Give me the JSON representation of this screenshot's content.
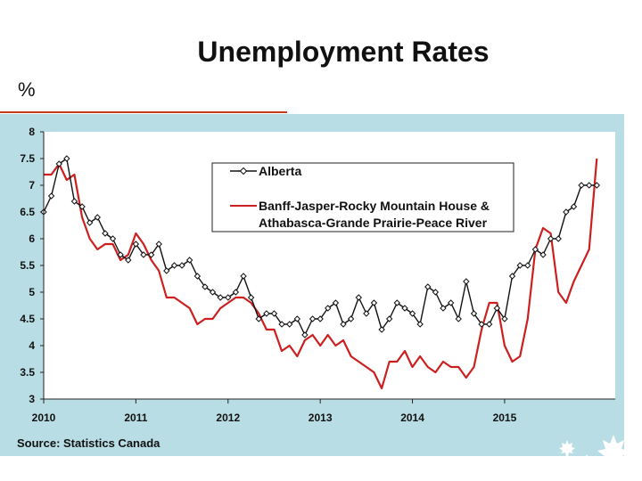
{
  "slide": {
    "title": "Unemployment Rates",
    "unit": "%",
    "source": "Source: Statistics Canada",
    "colors": {
      "panel": "#b9dde4",
      "accent": "#c8391f",
      "alberta": "#111111",
      "region": "#cc1f1f"
    }
  },
  "chart_data": {
    "type": "line",
    "title": "Unemployment Rates",
    "ylabel": "%",
    "xlim": [
      2010,
      2016.2
    ],
    "ylim": [
      3,
      8
    ],
    "yticks": [
      3,
      3.5,
      4,
      4.5,
      5,
      5.5,
      6,
      6.5,
      7,
      7.5,
      8
    ],
    "xticks": [
      2010,
      2011,
      2012,
      2013,
      2014,
      2015
    ],
    "grid": false,
    "legend": "top-center",
    "series": [
      {
        "name": "Alberta",
        "marker": "diamond",
        "color": "#111111",
        "x": [
          2010.0,
          2010.083,
          2010.167,
          2010.25,
          2010.333,
          2010.417,
          2010.5,
          2010.583,
          2010.667,
          2010.75,
          2010.833,
          2010.917,
          2011.0,
          2011.083,
          2011.167,
          2011.25,
          2011.333,
          2011.417,
          2011.5,
          2011.583,
          2011.667,
          2011.75,
          2011.833,
          2011.917,
          2012.0,
          2012.083,
          2012.167,
          2012.25,
          2012.333,
          2012.417,
          2012.5,
          2012.583,
          2012.667,
          2012.75,
          2012.833,
          2012.917,
          2013.0,
          2013.083,
          2013.167,
          2013.25,
          2013.333,
          2013.417,
          2013.5,
          2013.583,
          2013.667,
          2013.75,
          2013.833,
          2013.917,
          2014.0,
          2014.083,
          2014.167,
          2014.25,
          2014.333,
          2014.417,
          2014.5,
          2014.583,
          2014.667,
          2014.75,
          2014.833,
          2014.917,
          2015.0,
          2015.083,
          2015.167,
          2015.25,
          2015.333,
          2015.417,
          2015.5,
          2015.583,
          2015.667,
          2015.75,
          2015.833,
          2015.917,
          2016.0
        ],
        "y": [
          6.5,
          6.8,
          7.4,
          7.5,
          6.7,
          6.6,
          6.3,
          6.4,
          6.1,
          6.0,
          5.7,
          5.6,
          5.9,
          5.7,
          5.7,
          5.9,
          5.4,
          5.5,
          5.5,
          5.6,
          5.3,
          5.1,
          5.0,
          4.9,
          4.9,
          5.0,
          5.3,
          4.9,
          4.5,
          4.6,
          4.6,
          4.4,
          4.4,
          4.5,
          4.2,
          4.5,
          4.5,
          4.7,
          4.8,
          4.4,
          4.5,
          4.9,
          4.6,
          4.8,
          4.3,
          4.5,
          4.8,
          4.7,
          4.6,
          4.4,
          5.1,
          5.0,
          4.7,
          4.8,
          4.5,
          5.2,
          4.6,
          4.4,
          4.4,
          4.7,
          4.5,
          5.3,
          5.5,
          5.5,
          5.8,
          5.7,
          6.0,
          6.0,
          6.5,
          6.6,
          7.0,
          7.0,
          7.0
        ]
      },
      {
        "name": "Banff-Jasper-Rocky Mountain House & Athabasca-Grande Prairie-Peace River",
        "marker": "none",
        "color": "#cc1f1f",
        "x": [
          2010.0,
          2010.083,
          2010.167,
          2010.25,
          2010.333,
          2010.417,
          2010.5,
          2010.583,
          2010.667,
          2010.75,
          2010.833,
          2010.917,
          2011.0,
          2011.083,
          2011.167,
          2011.25,
          2011.333,
          2011.417,
          2011.5,
          2011.583,
          2011.667,
          2011.75,
          2011.833,
          2011.917,
          2012.0,
          2012.083,
          2012.167,
          2012.25,
          2012.333,
          2012.417,
          2012.5,
          2012.583,
          2012.667,
          2012.75,
          2012.833,
          2012.917,
          2013.0,
          2013.083,
          2013.167,
          2013.25,
          2013.333,
          2013.417,
          2013.5,
          2013.583,
          2013.667,
          2013.75,
          2013.833,
          2013.917,
          2014.0,
          2014.083,
          2014.167,
          2014.25,
          2014.333,
          2014.417,
          2014.5,
          2014.583,
          2014.667,
          2014.75,
          2014.833,
          2014.917,
          2015.0,
          2015.083,
          2015.167,
          2015.25,
          2015.333,
          2015.417,
          2015.5,
          2015.583,
          2015.667,
          2015.75,
          2015.833,
          2015.917,
          2016.0
        ],
        "y": [
          7.2,
          7.2,
          7.4,
          7.1,
          7.2,
          6.4,
          6.0,
          5.8,
          5.9,
          5.9,
          5.6,
          5.7,
          6.1,
          5.9,
          5.6,
          5.4,
          4.9,
          4.9,
          4.8,
          4.7,
          4.4,
          4.5,
          4.5,
          4.7,
          4.8,
          4.9,
          4.9,
          4.8,
          4.6,
          4.3,
          4.3,
          3.9,
          4.0,
          3.8,
          4.1,
          4.2,
          4.0,
          4.2,
          4.0,
          4.1,
          3.8,
          3.7,
          3.6,
          3.5,
          3.2,
          3.7,
          3.7,
          3.9,
          3.6,
          3.8,
          3.6,
          3.5,
          3.7,
          3.6,
          3.6,
          3.4,
          3.6,
          4.3,
          4.8,
          4.8,
          4.0,
          3.7,
          3.8,
          4.5,
          5.8,
          6.2,
          6.1,
          5.0,
          4.8,
          5.2,
          5.5,
          5.8,
          7.5
        ]
      }
    ]
  }
}
